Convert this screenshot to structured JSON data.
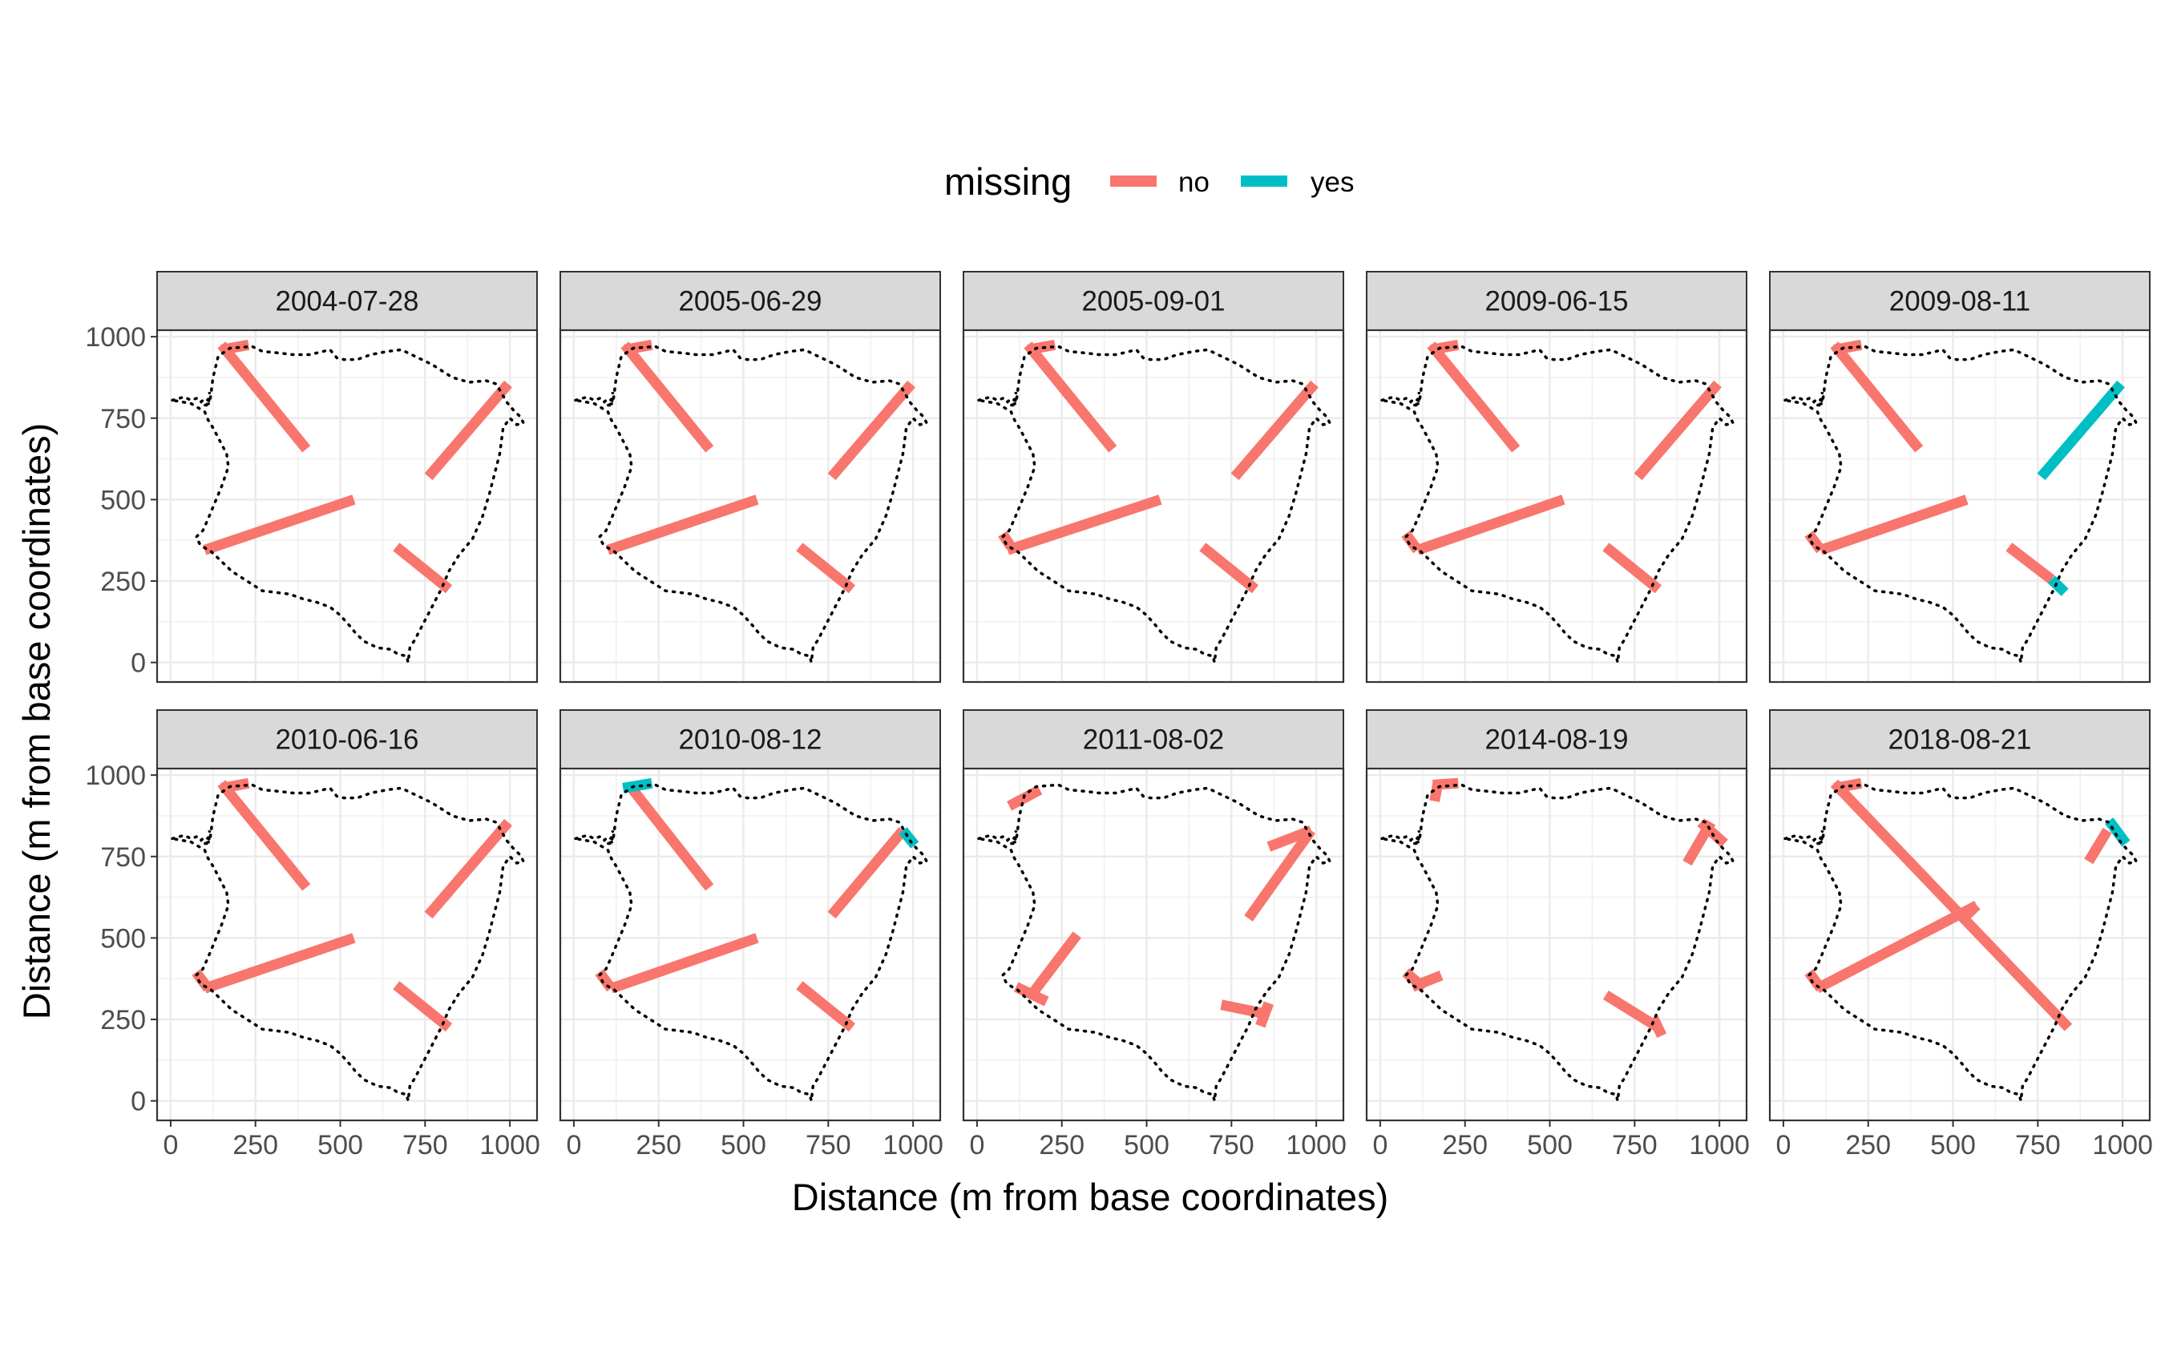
{
  "chart_data": {
    "type": "line",
    "xlabel": "Distance (m from base coordinates)",
    "ylabel": "Distance (m from base coordinates)",
    "xlim": [
      -40,
      1080
    ],
    "ylim": [
      -60,
      1020
    ],
    "x_ticks": [
      0,
      250,
      500,
      750,
      1000
    ],
    "y_ticks": [
      0,
      250,
      500,
      750,
      1000
    ],
    "grid": true,
    "legend": {
      "title": "missing",
      "position": "top",
      "items": [
        {
          "label": "no",
          "color": "#F8766D"
        },
        {
          "label": "yes",
          "color": "#00BFC4"
        }
      ]
    },
    "boundary": [
      [
        5,
        805
      ],
      [
        40,
        815
      ],
      [
        60,
        805
      ],
      [
        80,
        812
      ],
      [
        90,
        800
      ],
      [
        100,
        810
      ],
      [
        110,
        805
      ],
      [
        115,
        830
      ],
      [
        112,
        790
      ],
      [
        95,
        790
      ],
      [
        115,
        795
      ],
      [
        125,
        875
      ],
      [
        140,
        940
      ],
      [
        175,
        965
      ],
      [
        240,
        970
      ],
      [
        270,
        955
      ],
      [
        320,
        950
      ],
      [
        360,
        945
      ],
      [
        410,
        945
      ],
      [
        470,
        960
      ],
      [
        490,
        935
      ],
      [
        510,
        930
      ],
      [
        550,
        930
      ],
      [
        590,
        945
      ],
      [
        640,
        955
      ],
      [
        680,
        960
      ],
      [
        720,
        940
      ],
      [
        770,
        915
      ],
      [
        830,
        875
      ],
      [
        880,
        860
      ],
      [
        930,
        865
      ],
      [
        960,
        855
      ],
      [
        990,
        800
      ],
      [
        1010,
        775
      ],
      [
        1030,
        755
      ],
      [
        1040,
        735
      ],
      [
        1020,
        730
      ],
      [
        1000,
        750
      ],
      [
        980,
        720
      ],
      [
        970,
        640
      ],
      [
        955,
        580
      ],
      [
        940,
        520
      ],
      [
        920,
        450
      ],
      [
        890,
        380
      ],
      [
        850,
        330
      ],
      [
        820,
        280
      ],
      [
        800,
        230
      ],
      [
        780,
        190
      ],
      [
        760,
        150
      ],
      [
        740,
        110
      ],
      [
        720,
        70
      ],
      [
        705,
        45
      ],
      [
        700,
        0
      ],
      [
        695,
        20
      ],
      [
        670,
        25
      ],
      [
        650,
        40
      ],
      [
        610,
        45
      ],
      [
        570,
        65
      ],
      [
        545,
        90
      ],
      [
        530,
        110
      ],
      [
        500,
        145
      ],
      [
        470,
        170
      ],
      [
        430,
        185
      ],
      [
        390,
        195
      ],
      [
        350,
        210
      ],
      [
        310,
        215
      ],
      [
        270,
        220
      ],
      [
        225,
        250
      ],
      [
        180,
        280
      ],
      [
        150,
        310
      ],
      [
        120,
        340
      ],
      [
        95,
        355
      ],
      [
        85,
        365
      ],
      [
        75,
        385
      ],
      [
        95,
        405
      ],
      [
        110,
        440
      ],
      [
        150,
        540
      ],
      [
        170,
        600
      ],
      [
        165,
        640
      ],
      [
        140,
        690
      ],
      [
        125,
        720
      ],
      [
        110,
        745
      ],
      [
        100,
        770
      ],
      [
        60,
        795
      ],
      [
        5,
        805
      ]
    ],
    "panels": [
      {
        "title": "2004-07-28",
        "transects": [
          {
            "missing": "no",
            "x": [
              150,
              400
            ],
            "y": [
              975,
              655
            ]
          },
          {
            "missing": "no",
            "x": [
              100,
              540
            ],
            "y": [
              345,
              500
            ]
          },
          {
            "missing": "no",
            "x": [
              760,
              995
            ],
            "y": [
              570,
              855
            ]
          },
          {
            "missing": "no",
            "x": [
              665,
              820
            ],
            "y": [
              355,
              225
            ]
          },
          {
            "missing": "no",
            "x": [
              150,
              230
            ],
            "y": [
              960,
              975
            ]
          }
        ]
      },
      {
        "title": "2005-06-29",
        "transects": [
          {
            "missing": "no",
            "x": [
              150,
              400
            ],
            "y": [
              975,
              655
            ]
          },
          {
            "missing": "no",
            "x": [
              100,
              540
            ],
            "y": [
              345,
              500
            ]
          },
          {
            "missing": "no",
            "x": [
              760,
              995
            ],
            "y": [
              570,
              855
            ]
          },
          {
            "missing": "no",
            "x": [
              665,
              820
            ],
            "y": [
              355,
              225
            ]
          },
          {
            "missing": "no",
            "x": [
              150,
              230
            ],
            "y": [
              960,
              975
            ]
          }
        ]
      },
      {
        "title": "2005-09-01",
        "transects": [
          {
            "missing": "no",
            "x": [
              150,
              400
            ],
            "y": [
              975,
              655
            ]
          },
          {
            "missing": "no",
            "x": [
              90,
              540
            ],
            "y": [
              345,
              500
            ]
          },
          {
            "missing": "no",
            "x": [
              760,
              995
            ],
            "y": [
              570,
              855
            ]
          },
          {
            "missing": "no",
            "x": [
              665,
              820
            ],
            "y": [
              355,
              225
            ]
          },
          {
            "missing": "no",
            "x": [
              150,
              230
            ],
            "y": [
              960,
              975
            ]
          },
          {
            "missing": "no",
            "x": [
              75,
              100
            ],
            "y": [
              395,
              355
            ]
          }
        ]
      },
      {
        "title": "2009-06-15",
        "transects": [
          {
            "missing": "no",
            "x": [
              150,
              400
            ],
            "y": [
              975,
              655
            ]
          },
          {
            "missing": "no",
            "x": [
              110,
              540
            ],
            "y": [
              345,
              500
            ]
          },
          {
            "missing": "no",
            "x": [
              760,
              995
            ],
            "y": [
              570,
              855
            ]
          },
          {
            "missing": "no",
            "x": [
              665,
              820
            ],
            "y": [
              355,
              225
            ]
          },
          {
            "missing": "no",
            "x": [
              150,
              230
            ],
            "y": [
              960,
              975
            ]
          },
          {
            "missing": "no",
            "x": [
              75,
              110
            ],
            "y": [
              395,
              345
            ]
          }
        ]
      },
      {
        "title": "2009-08-11",
        "transects": [
          {
            "missing": "no",
            "x": [
              150,
              400
            ],
            "y": [
              975,
              655
            ]
          },
          {
            "missing": "no",
            "x": [
              110,
              540
            ],
            "y": [
              345,
              500
            ]
          },
          {
            "missing": "yes",
            "x": [
              760,
              995
            ],
            "y": [
              570,
              855
            ]
          },
          {
            "missing": "no",
            "x": [
              665,
              790
            ],
            "y": [
              355,
              255
            ]
          },
          {
            "missing": "yes",
            "x": [
              790,
              830
            ],
            "y": [
              255,
              215
            ]
          },
          {
            "missing": "no",
            "x": [
              150,
              230
            ],
            "y": [
              960,
              975
            ]
          },
          {
            "missing": "no",
            "x": [
              75,
              110
            ],
            "y": [
              395,
              345
            ]
          }
        ]
      },
      {
        "title": "2010-06-16",
        "transects": [
          {
            "missing": "no",
            "x": [
              150,
              400
            ],
            "y": [
              975,
              655
            ]
          },
          {
            "missing": "no",
            "x": [
              100,
              540
            ],
            "y": [
              345,
              500
            ]
          },
          {
            "missing": "no",
            "x": [
              760,
              995
            ],
            "y": [
              570,
              855
            ]
          },
          {
            "missing": "no",
            "x": [
              665,
              820
            ],
            "y": [
              355,
              225
            ]
          },
          {
            "missing": "no",
            "x": [
              150,
              230
            ],
            "y": [
              960,
              975
            ]
          },
          {
            "missing": "no",
            "x": [
              75,
              110
            ],
            "y": [
              395,
              345
            ]
          }
        ]
      },
      {
        "title": "2010-08-12",
        "transects": [
          {
            "missing": "no",
            "x": [
              170,
              400
            ],
            "y": [
              960,
              655
            ]
          },
          {
            "missing": "no",
            "x": [
              110,
              540
            ],
            "y": [
              345,
              500
            ]
          },
          {
            "missing": "no",
            "x": [
              760,
              970
            ],
            "y": [
              570,
              830
            ]
          },
          {
            "missing": "yes",
            "x": [
              970,
              1005
            ],
            "y": [
              830,
              785
            ]
          },
          {
            "missing": "no",
            "x": [
              665,
              820
            ],
            "y": [
              355,
              225
            ]
          },
          {
            "missing": "yes",
            "x": [
              145,
              230
            ],
            "y": [
              960,
              975
            ]
          },
          {
            "missing": "no",
            "x": [
              75,
              110
            ],
            "y": [
              395,
              345
            ]
          }
        ]
      },
      {
        "title": "2011-08-02",
        "transects": [
          {
            "missing": "no",
            "x": [
              95,
              185
            ],
            "y": [
              905,
              955
            ]
          },
          {
            "missing": "no",
            "x": [
              160,
              295
            ],
            "y": [
              325,
              510
            ]
          },
          {
            "missing": "no",
            "x": [
              115,
              205
            ],
            "y": [
              350,
              305
            ]
          },
          {
            "missing": "no",
            "x": [
              800,
              985
            ],
            "y": [
              560,
              830
            ]
          },
          {
            "missing": "no",
            "x": [
              860,
              985
            ],
            "y": [
              780,
              830
            ]
          },
          {
            "missing": "no",
            "x": [
              720,
              860
            ],
            "y": [
              295,
              265
            ]
          },
          {
            "missing": "no",
            "x": [
              835,
              860
            ],
            "y": [
              230,
              300
            ]
          }
        ]
      },
      {
        "title": "2014-08-19",
        "transects": [
          {
            "missing": "no",
            "x": [
              155,
              230
            ],
            "y": [
              970,
              975
            ]
          },
          {
            "missing": "no",
            "x": [
              160,
              170
            ],
            "y": [
              920,
              975
            ]
          },
          {
            "missing": "no",
            "x": [
              75,
              130
            ],
            "y": [
              395,
              345
            ]
          },
          {
            "missing": "no",
            "x": [
              95,
              180
            ],
            "y": [
              350,
              385
            ]
          },
          {
            "missing": "no",
            "x": [
              905,
              975
            ],
            "y": [
              730,
              855
            ]
          },
          {
            "missing": "no",
            "x": [
              945,
              1015
            ],
            "y": [
              855,
              790
            ]
          },
          {
            "missing": "no",
            "x": [
              665,
              820
            ],
            "y": [
              325,
              225
            ]
          },
          {
            "missing": "no",
            "x": [
              805,
              830
            ],
            "y": [
              255,
              200
            ]
          }
        ]
      },
      {
        "title": "2018-08-21",
        "transects": [
          {
            "missing": "no",
            "x": [
              150,
              840
            ],
            "y": [
              975,
              225
            ]
          },
          {
            "missing": "no",
            "x": [
              100,
              570
            ],
            "y": [
              345,
              600
            ]
          },
          {
            "missing": "no",
            "x": [
              530,
              570
            ],
            "y": [
              560,
              600
            ]
          },
          {
            "missing": "no",
            "x": [
              75,
              110
            ],
            "y": [
              395,
              345
            ]
          },
          {
            "missing": "no",
            "x": [
              150,
              230
            ],
            "y": [
              960,
              975
            ]
          },
          {
            "missing": "no",
            "x": [
              900,
              955
            ],
            "y": [
              735,
              830
            ]
          },
          {
            "missing": "yes",
            "x": [
              960,
              1010
            ],
            "y": [
              860,
              790
            ]
          }
        ]
      }
    ]
  }
}
